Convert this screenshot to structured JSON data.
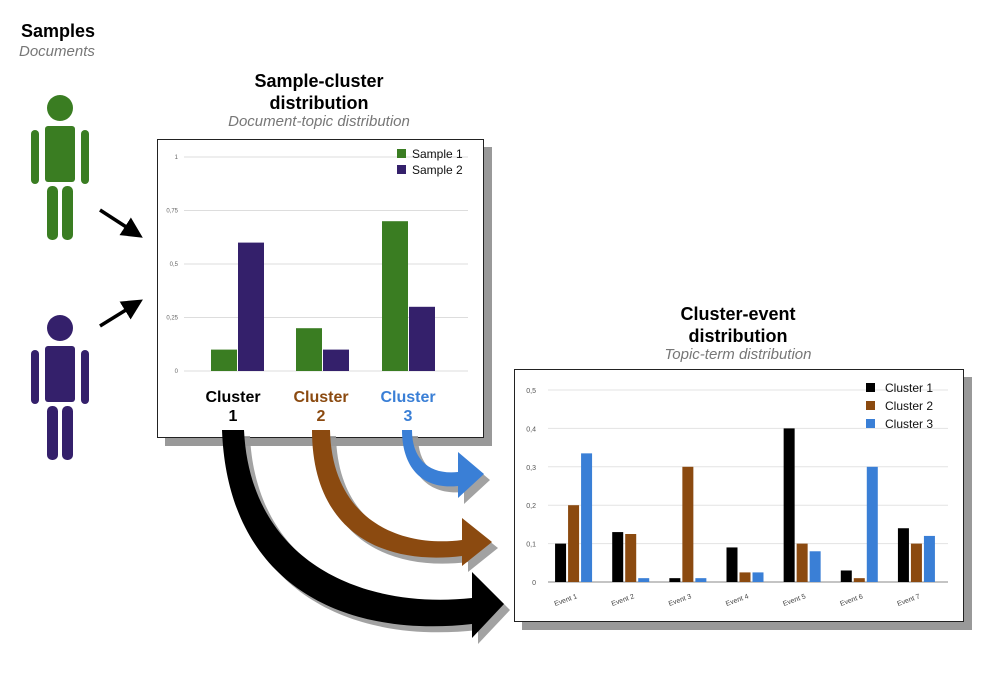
{
  "samples": {
    "title": "Samples",
    "subtitle": "Documents"
  },
  "sample_cluster": {
    "title_line1": "Sample-cluster",
    "title_line2": "distribution",
    "subtitle": "Document-topic distribution"
  },
  "cluster_event": {
    "title_line1": "Cluster-event",
    "title_line2": "distribution",
    "subtitle": "Topic-term distribution"
  },
  "cluster_labels": [
    {
      "word": "Cluster",
      "num": "1"
    },
    {
      "word": "Cluster",
      "num": "2"
    },
    {
      "word": "Cluster",
      "num": "3"
    }
  ],
  "colors": {
    "sample1": "#3a7d22",
    "sample2": "#34206b",
    "cluster1": "#000000",
    "cluster2": "#8b4a10",
    "cluster3": "#3a7fd6"
  },
  "chart_data": [
    {
      "type": "bar",
      "categories": [
        "1",
        "2",
        "3"
      ],
      "series": [
        {
          "name": "Sample 1",
          "values": [
            0.1,
            0.2,
            0.7
          ]
        },
        {
          "name": "Sample 2",
          "values": [
            0.6,
            0.1,
            0.3
          ]
        }
      ],
      "yticks": [
        "0",
        "0,25",
        "0,5",
        "0,75",
        "1"
      ],
      "ylim": [
        0,
        1
      ],
      "grid": true,
      "legend": "top-right"
    },
    {
      "type": "bar",
      "categories": [
        "Event 1",
        "Event 2",
        "Event 3",
        "Event 4",
        "Event 5",
        "Event 6",
        "Event 7"
      ],
      "series": [
        {
          "name": "Cluster 1",
          "values": [
            0.1,
            0.13,
            0.01,
            0.09,
            0.4,
            0.03,
            0.14
          ]
        },
        {
          "name": "Cluster 2",
          "values": [
            0.2,
            0.125,
            0.3,
            0.025,
            0.1,
            0.01,
            0.1
          ]
        },
        {
          "name": "Cluster 3",
          "values": [
            0.335,
            0.01,
            0.01,
            0.025,
            0.08,
            0.3,
            0.12
          ]
        }
      ],
      "yticks": [
        "0",
        "0,1",
        "0,2",
        "0,3",
        "0,4",
        "0,5"
      ],
      "ylim": [
        0,
        0.5
      ],
      "grid": true,
      "legend": "top-right"
    }
  ]
}
